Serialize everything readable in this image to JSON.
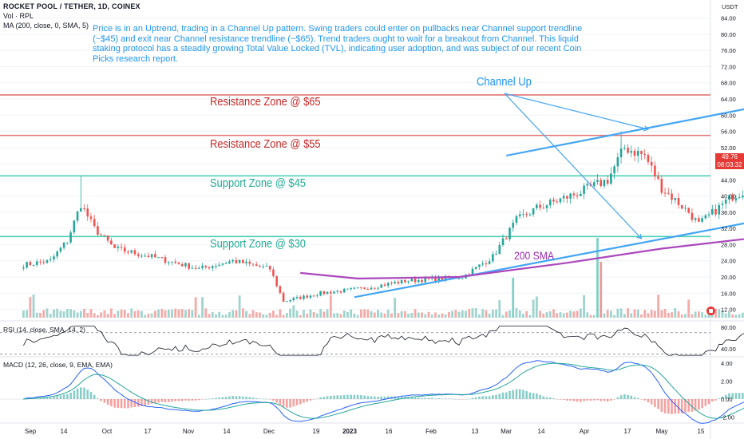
{
  "header": {
    "title": "ROCKET POOL / TETHER, 1D, COINEX",
    "volume_label": "Vol · RPL",
    "ma_label": "MA (200, close, 0, SMA, 5)",
    "currency": "USDT"
  },
  "annotation_text": "Price is in an Uptrend, trading in a Channel Up pattern. Swing traders could enter on pullbacks near Channel support trendline (~$45) and exit near Channel resistance trendline (~$65). Trend traders ought to wait for a breakout from Channel. This liquid staking protocol has a steadily growing Total Value Locked (TVL), indicating user adoption, and was subject of our recent Coin Picks research report.",
  "labels": {
    "res65": "Resistance Zone @ $65",
    "res55": "Resistance Zone @ $55",
    "sup45": "Support Zone @ $45",
    "sup30": "Support Zone @ $30",
    "channel": "Channel Up",
    "sma": "200 SMA"
  },
  "last_price": {
    "value": "49.76",
    "countdown": "08:03:32"
  },
  "rsi_label": "RSI (14, close, SMA, 14, 2)",
  "macd_label": "MACD (12, 26, close, 9, EMA, EMA)",
  "colors": {
    "up": "#26a69a",
    "down": "#ef5350",
    "resistance": "#e57373",
    "support": "#4dd0b5",
    "channel": "#42a5f5",
    "sma": "#ab47bc",
    "volume_up": "#9fd3cd",
    "volume_down": "#f4aaa8"
  },
  "chart_data": {
    "type": "candlestick",
    "title": "ROCKET POOL / TETHER, 1D, COINEX",
    "ylabel": "USDT",
    "ylim": [
      12,
      84
    ],
    "price_ticks": [
      12,
      16,
      20,
      24,
      28,
      32,
      36,
      40,
      44,
      48,
      52,
      56,
      60,
      64,
      68,
      72,
      76,
      80,
      84
    ],
    "x_ticks": [
      "Sep",
      "14",
      "Oct",
      "17",
      "Nov",
      "14",
      "Dec",
      "19",
      "2023",
      "16",
      "Feb",
      "13",
      "Mar",
      "14",
      "Apr",
      "17",
      "May",
      "15"
    ],
    "price_anchors": [
      {
        "date": "2022-08-24",
        "close": 23
      },
      {
        "date": "2022-09-01",
        "close": 24
      },
      {
        "date": "2022-09-06",
        "close": 29
      },
      {
        "date": "2022-09-10",
        "close": 38
      },
      {
        "date": "2022-09-14",
        "close": 32
      },
      {
        "date": "2022-09-20",
        "close": 27
      },
      {
        "date": "2022-10-01",
        "close": 25
      },
      {
        "date": "2022-10-15",
        "close": 22
      },
      {
        "date": "2022-10-25",
        "close": 24
      },
      {
        "date": "2022-11-05",
        "close": 22
      },
      {
        "date": "2022-11-09",
        "close": 14
      },
      {
        "date": "2022-11-20",
        "close": 16
      },
      {
        "date": "2022-12-01",
        "close": 17
      },
      {
        "date": "2022-12-15",
        "close": 19
      },
      {
        "date": "2023-01-01",
        "close": 20
      },
      {
        "date": "2023-01-10",
        "close": 25
      },
      {
        "date": "2023-01-17",
        "close": 34
      },
      {
        "date": "2023-01-23",
        "close": 37
      },
      {
        "date": "2023-02-05",
        "close": 41
      },
      {
        "date": "2023-02-13",
        "close": 44
      },
      {
        "date": "2023-02-18",
        "close": 52
      },
      {
        "date": "2023-02-24",
        "close": 50
      },
      {
        "date": "2023-03-01",
        "close": 42
      },
      {
        "date": "2023-03-09",
        "close": 36
      },
      {
        "date": "2023-03-12",
        "close": 33
      },
      {
        "date": "2023-03-22",
        "close": 40
      },
      {
        "date": "2023-04-05",
        "close": 45
      },
      {
        "date": "2023-04-12",
        "close": 48
      },
      {
        "date": "2023-04-16",
        "close": 58
      },
      {
        "date": "2023-04-20",
        "close": 49
      },
      {
        "date": "2023-04-25",
        "close": 47
      },
      {
        "date": "2023-05-05",
        "close": 51
      },
      {
        "date": "2023-05-12",
        "close": 46
      },
      {
        "date": "2023-05-16",
        "close": 52
      },
      {
        "date": "2023-05-20",
        "close": 49.76
      }
    ],
    "horizontal_levels": [
      {
        "label": "Resistance Zone @ $65",
        "value": 65
      },
      {
        "label": "Resistance Zone @ $55",
        "value": 55
      },
      {
        "label": "Support Zone @ $45",
        "value": 45
      },
      {
        "label": "Support Zone @ $30",
        "value": 30
      }
    ],
    "channel_lines": [
      {
        "name": "resistance",
        "from": {
          "date": "2023-01-14",
          "price": 50
        },
        "to": {
          "date": "2023-05-23",
          "price": 71
        }
      },
      {
        "name": "support",
        "from": {
          "date": "2022-11-30",
          "price": 15
        },
        "to": {
          "date": "2023-05-23",
          "price": 42.5
        }
      }
    ],
    "sma200": [
      {
        "date": "2022-11-14",
        "value": 21
      },
      {
        "date": "2022-12-01",
        "value": 19.6
      },
      {
        "date": "2022-12-31",
        "value": 20
      },
      {
        "date": "2023-02-01",
        "value": 23.5
      },
      {
        "date": "2023-03-01",
        "value": 27
      },
      {
        "date": "2023-04-01",
        "value": 30
      },
      {
        "date": "2023-05-01",
        "value": 32.5
      },
      {
        "date": "2023-05-23",
        "value": 35
      }
    ],
    "rsi": {
      "ticks": [
        40,
        80
      ],
      "levels": [
        30,
        70
      ]
    },
    "macd": {
      "ticks": [
        -2,
        0,
        2,
        4
      ]
    }
  }
}
